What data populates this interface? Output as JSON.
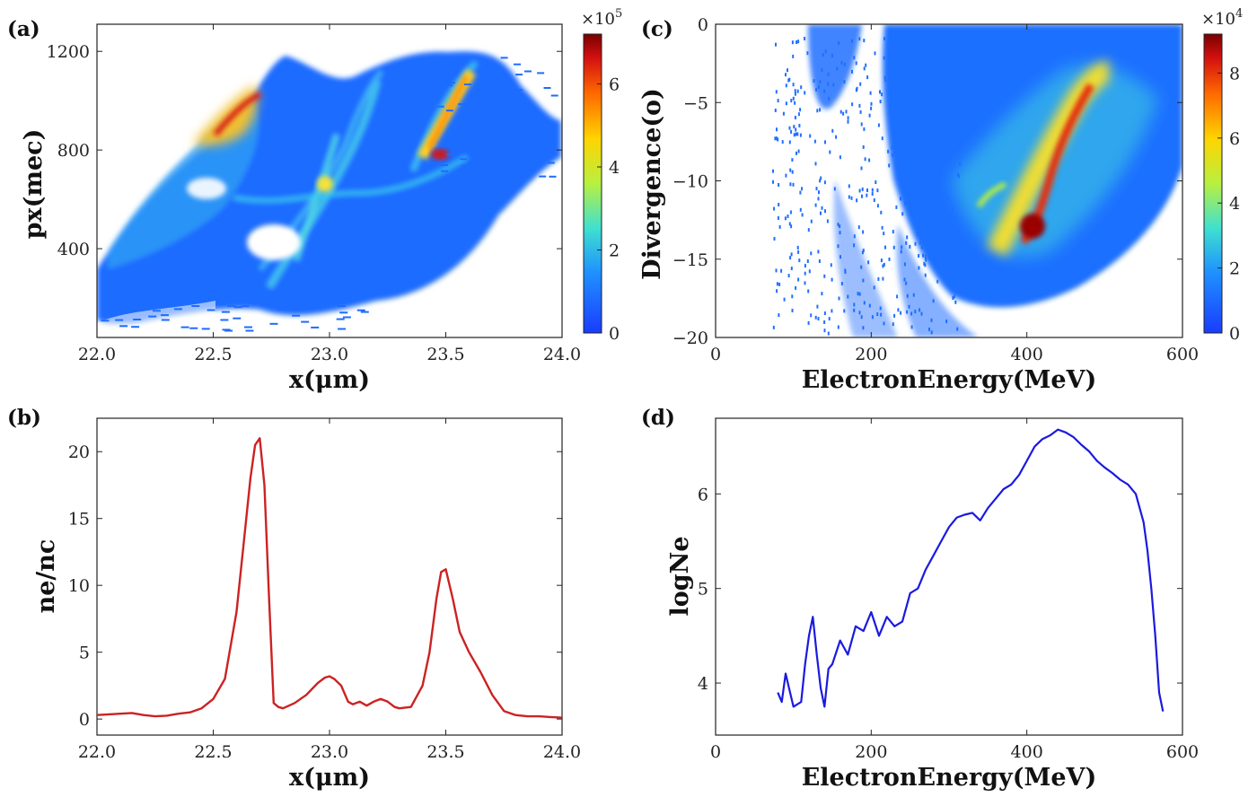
{
  "chart_data": [
    {
      "id": "a",
      "panel_label": "(a)",
      "type": "heatmap",
      "xlabel": "x(μm)",
      "ylabel": "px(mec)",
      "xlim": [
        22.0,
        24.0
      ],
      "ylim": [
        40,
        1310
      ],
      "xticks": [
        "22.0",
        "22.5",
        "23.0",
        "23.5",
        "24.0"
      ],
      "yticks": [
        "400",
        "800",
        "1200"
      ],
      "colorbar": {
        "ticks": [
          "0",
          "2",
          "4",
          "6"
        ],
        "range": [
          0,
          7.2
        ],
        "multiplier": "×10",
        "exponent": "5"
      },
      "features": [
        {
          "x": 22.65,
          "y": 900,
          "value": 6.8
        },
        {
          "x": 23.48,
          "y": 760,
          "value": 6.5
        },
        {
          "x": 23.6,
          "y": 1000,
          "value": 4.5
        },
        {
          "x": 23.0,
          "y": 650,
          "value": 3.0
        }
      ]
    },
    {
      "id": "b",
      "panel_label": "(b)",
      "type": "line",
      "xlabel": "x(μm)",
      "ylabel": "ne/nc",
      "xlim": [
        22.0,
        24.0
      ],
      "ylim": [
        -1.2,
        22.5
      ],
      "xticks": [
        "22.0",
        "22.5",
        "23.0",
        "23.5",
        "24.0"
      ],
      "yticks": [
        "0",
        "5",
        "10",
        "15",
        "20"
      ],
      "color": "#cc2222",
      "x": [
        22.0,
        22.05,
        22.1,
        22.15,
        22.2,
        22.25,
        22.3,
        22.35,
        22.4,
        22.45,
        22.5,
        22.55,
        22.6,
        22.63,
        22.66,
        22.68,
        22.7,
        22.72,
        22.74,
        22.76,
        22.78,
        22.8,
        22.85,
        22.9,
        22.95,
        22.98,
        23.0,
        23.02,
        23.05,
        23.08,
        23.1,
        23.13,
        23.16,
        23.19,
        23.22,
        23.25,
        23.28,
        23.3,
        23.35,
        23.4,
        23.43,
        23.46,
        23.48,
        23.5,
        23.53,
        23.56,
        23.6,
        23.65,
        23.7,
        23.75,
        23.8,
        23.85,
        23.9,
        23.95,
        24.0
      ],
      "y": [
        0.3,
        0.35,
        0.4,
        0.45,
        0.3,
        0.2,
        0.25,
        0.4,
        0.5,
        0.8,
        1.5,
        3.0,
        8.0,
        13.0,
        18.0,
        20.5,
        21.0,
        17.5,
        9.0,
        1.2,
        0.9,
        0.8,
        1.2,
        1.8,
        2.7,
        3.1,
        3.2,
        3.0,
        2.5,
        1.3,
        1.1,
        1.3,
        1.0,
        1.3,
        1.5,
        1.3,
        0.9,
        0.8,
        0.9,
        2.5,
        5.0,
        9.0,
        11.0,
        11.2,
        9.0,
        6.5,
        5.0,
        3.5,
        1.8,
        0.6,
        0.3,
        0.2,
        0.2,
        0.15,
        0.1
      ]
    },
    {
      "id": "c",
      "panel_label": "(c)",
      "type": "heatmap",
      "xlabel": "ElectronEnergy(MeV)",
      "ylabel": "Divergence(o)",
      "xlim": [
        0,
        600
      ],
      "ylim": [
        -20,
        0
      ],
      "xticks": [
        "0",
        "200",
        "400",
        "600"
      ],
      "yticks": [
        "0",
        "−5",
        "−10",
        "−15",
        "−20"
      ],
      "colorbar": {
        "ticks": [
          "0",
          "2",
          "4",
          "6",
          "8"
        ],
        "range": [
          0,
          9.2
        ],
        "multiplier": "×10",
        "exponent": "4"
      },
      "features": [
        {
          "x": 400,
          "y": -13.2,
          "value": 9.0
        },
        {
          "x": 430,
          "y": -8.5,
          "value": 8.0
        },
        {
          "x": 470,
          "y": -4.0,
          "value": 7.5
        },
        {
          "x": 450,
          "y": -6.5,
          "value": 6.0
        }
      ]
    },
    {
      "id": "d",
      "panel_label": "(d)",
      "type": "line",
      "xlabel": "ElectronEnergy(MeV)",
      "ylabel": "logNe",
      "xlim": [
        0,
        600
      ],
      "ylim": [
        3.45,
        6.8
      ],
      "xticks": [
        "0",
        "200",
        "400",
        "600"
      ],
      "yticks": [
        "4",
        "5",
        "6"
      ],
      "color": "#1a1adf",
      "x": [
        80,
        85,
        90,
        100,
        110,
        115,
        120,
        125,
        130,
        135,
        140,
        145,
        150,
        160,
        170,
        180,
        190,
        200,
        210,
        220,
        230,
        240,
        250,
        260,
        270,
        280,
        290,
        300,
        310,
        320,
        330,
        340,
        350,
        360,
        370,
        380,
        390,
        400,
        410,
        420,
        430,
        440,
        450,
        460,
        470,
        480,
        490,
        500,
        510,
        520,
        530,
        540,
        550,
        555,
        560,
        565,
        570,
        575
      ],
      "y": [
        3.9,
        3.8,
        4.1,
        3.75,
        3.8,
        4.2,
        4.5,
        4.7,
        4.3,
        3.95,
        3.75,
        4.15,
        4.2,
        4.45,
        4.3,
        4.6,
        4.55,
        4.75,
        4.5,
        4.7,
        4.6,
        4.65,
        4.95,
        5.0,
        5.2,
        5.35,
        5.5,
        5.65,
        5.75,
        5.78,
        5.8,
        5.72,
        5.85,
        5.95,
        6.05,
        6.1,
        6.2,
        6.35,
        6.5,
        6.58,
        6.62,
        6.68,
        6.65,
        6.6,
        6.52,
        6.45,
        6.35,
        6.28,
        6.22,
        6.15,
        6.1,
        6.0,
        5.7,
        5.4,
        5.0,
        4.5,
        3.9,
        3.7
      ]
    }
  ]
}
